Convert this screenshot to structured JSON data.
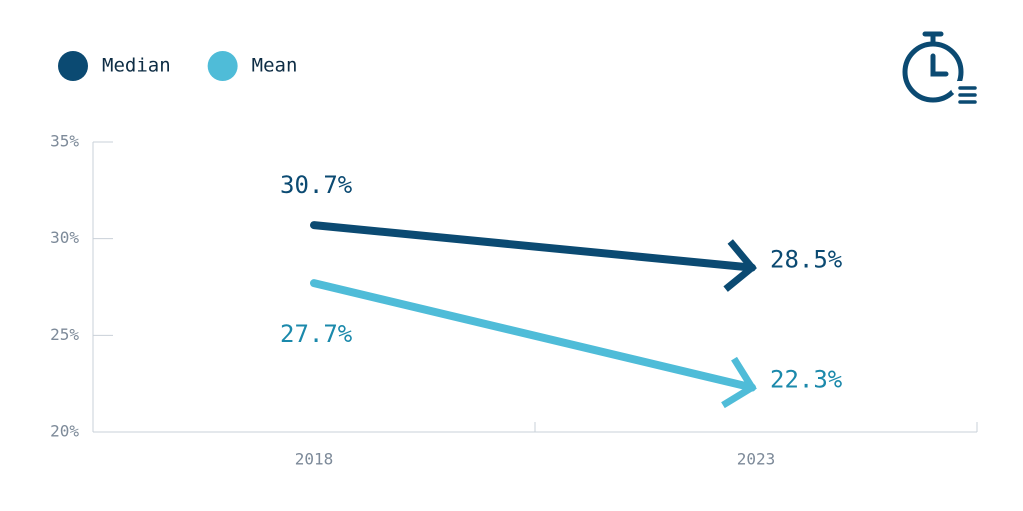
{
  "chart_data": {
    "type": "line",
    "categories": [
      "2018",
      "2023"
    ],
    "series": [
      {
        "name": "Median",
        "color": "#0b4a72",
        "values": [
          30.7,
          28.5
        ],
        "value_labels": [
          "30.7%",
          "28.5%"
        ]
      },
      {
        "name": "Mean",
        "color": "#4fbcd8",
        "values": [
          27.7,
          22.3
        ],
        "value_labels": [
          "27.7%",
          "22.3%"
        ]
      }
    ],
    "ylim": [
      20,
      35
    ],
    "yticks": [
      {
        "value": 20,
        "label": "20%"
      },
      {
        "value": 25,
        "label": "25%"
      },
      {
        "value": 30,
        "label": "30%"
      },
      {
        "value": 35,
        "label": "35%"
      }
    ],
    "grid": false,
    "legend": "top-left"
  }
}
